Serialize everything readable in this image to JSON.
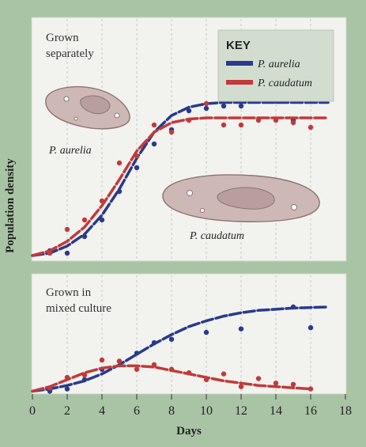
{
  "chart_data": [
    {
      "type": "line",
      "panel_label": [
        "Grown in",
        "mixed culture"
      ],
      "x_axis": {
        "label": "Days",
        "range": [
          0,
          18
        ],
        "ticks": [
          0,
          2,
          4,
          6,
          8,
          10,
          12,
          14,
          16,
          18
        ]
      },
      "y_axis": {
        "label": "Population density"
      },
      "series": [
        {
          "name": "P. aurelia",
          "color": "#2a3a8c",
          "curve": [
            [
              0,
              0.01
            ],
            [
              1,
              0.03
            ],
            [
              2,
              0.06
            ],
            [
              3,
              0.1
            ],
            [
              4,
              0.16
            ],
            [
              5,
              0.24
            ],
            [
              6,
              0.33
            ],
            [
              7,
              0.42
            ],
            [
              8,
              0.5
            ],
            [
              9,
              0.57
            ],
            [
              10,
              0.62
            ],
            [
              11,
              0.66
            ],
            [
              12,
              0.69
            ],
            [
              13,
              0.71
            ],
            [
              14,
              0.72
            ],
            [
              15,
              0.73
            ],
            [
              16,
              0.735
            ],
            [
              17,
              0.74
            ]
          ],
          "points": [
            [
              1,
              0.01
            ],
            [
              2,
              0.03
            ],
            [
              3,
              0.11
            ],
            [
              4,
              0.2
            ],
            [
              5,
              0.27
            ],
            [
              6,
              0.34
            ],
            [
              7,
              0.43
            ],
            [
              8,
              0.46
            ],
            [
              10,
              0.52
            ],
            [
              12,
              0.55
            ],
            [
              15,
              0.74
            ],
            [
              16,
              0.56
            ]
          ]
        },
        {
          "name": "P. caudatum",
          "color": "#c23a3a",
          "curve": [
            [
              0,
              0.01
            ],
            [
              1,
              0.05
            ],
            [
              2,
              0.11
            ],
            [
              3,
              0.17
            ],
            [
              4,
              0.21
            ],
            [
              5,
              0.23
            ],
            [
              6,
              0.23
            ],
            [
              7,
              0.22
            ],
            [
              8,
              0.19
            ],
            [
              9,
              0.16
            ],
            [
              10,
              0.13
            ],
            [
              11,
              0.1
            ],
            [
              12,
              0.08
            ],
            [
              13,
              0.06
            ],
            [
              14,
              0.05
            ],
            [
              15,
              0.04
            ],
            [
              16,
              0.03
            ]
          ],
          "points": [
            [
              1,
              0.04
            ],
            [
              2,
              0.13
            ],
            [
              3,
              0.15
            ],
            [
              4,
              0.28
            ],
            [
              5,
              0.27
            ],
            [
              6,
              0.2
            ],
            [
              7,
              0.24
            ],
            [
              8,
              0.2
            ],
            [
              9,
              0.17
            ],
            [
              10,
              0.11
            ],
            [
              11,
              0.16
            ],
            [
              12,
              0.05
            ],
            [
              13,
              0.12
            ],
            [
              14,
              0.08
            ],
            [
              15,
              0.07
            ],
            [
              16,
              0.03
            ]
          ]
        }
      ]
    },
    {
      "type": "line",
      "panel_label": [
        "Grown",
        "separately"
      ],
      "x_axis": {
        "range": [
          0,
          18
        ]
      },
      "series": [
        {
          "name": "P. aurelia",
          "color": "#2a3a8c",
          "curve": [
            [
              0,
              0.01
            ],
            [
              1,
              0.02
            ],
            [
              2,
              0.05
            ],
            [
              3,
              0.1
            ],
            [
              4,
              0.18
            ],
            [
              5,
              0.29
            ],
            [
              6,
              0.42
            ],
            [
              7,
              0.53
            ],
            [
              8,
              0.6
            ],
            [
              9,
              0.635
            ],
            [
              10,
              0.65
            ],
            [
              11,
              0.655
            ],
            [
              12,
              0.655
            ],
            [
              13,
              0.655
            ],
            [
              14,
              0.655
            ],
            [
              15,
              0.655
            ],
            [
              16,
              0.655
            ],
            [
              17,
              0.655
            ]
          ],
          "points": [
            [
              1,
              0.03
            ],
            [
              2,
              0.02
            ],
            [
              3,
              0.09
            ],
            [
              4,
              0.16
            ],
            [
              5,
              0.28
            ],
            [
              6,
              0.38
            ],
            [
              7,
              0.48
            ],
            [
              8,
              0.54
            ],
            [
              9,
              0.62
            ],
            [
              10,
              0.63
            ],
            [
              11,
              0.64
            ],
            [
              12,
              0.64
            ],
            [
              13,
              0.7
            ],
            [
              14,
              0.66
            ],
            [
              15,
              0.58
            ],
            [
              16,
              0.67
            ]
          ]
        },
        {
          "name": "P. caudatum",
          "color": "#c23a3a",
          "curve": [
            [
              0,
              0.01
            ],
            [
              1,
              0.03
            ],
            [
              2,
              0.07
            ],
            [
              3,
              0.13
            ],
            [
              4,
              0.22
            ],
            [
              5,
              0.33
            ],
            [
              6,
              0.45
            ],
            [
              7,
              0.53
            ],
            [
              8,
              0.57
            ],
            [
              9,
              0.585
            ],
            [
              10,
              0.59
            ],
            [
              11,
              0.59
            ],
            [
              12,
              0.59
            ],
            [
              13,
              0.59
            ],
            [
              14,
              0.59
            ],
            [
              15,
              0.59
            ],
            [
              16,
              0.59
            ],
            [
              17,
              0.59
            ]
          ],
          "points": [
            [
              1,
              0.02
            ],
            [
              2,
              0.12
            ],
            [
              3,
              0.16
            ],
            [
              4,
              0.24
            ],
            [
              5,
              0.4
            ],
            [
              6,
              0.43
            ],
            [
              7,
              0.56
            ],
            [
              8,
              0.53
            ],
            [
              9,
              0.58
            ],
            [
              10,
              0.65
            ],
            [
              11,
              0.56
            ],
            [
              12,
              0.56
            ],
            [
              13,
              0.58
            ],
            [
              14,
              0.58
            ],
            [
              15,
              0.57
            ],
            [
              16,
              0.55
            ]
          ]
        }
      ],
      "key": {
        "title": "KEY",
        "entries": [
          "P. aurelia",
          "P. caudatum"
        ]
      },
      "species_labels": [
        "P. aurelia",
        "P. caudatum"
      ]
    }
  ]
}
